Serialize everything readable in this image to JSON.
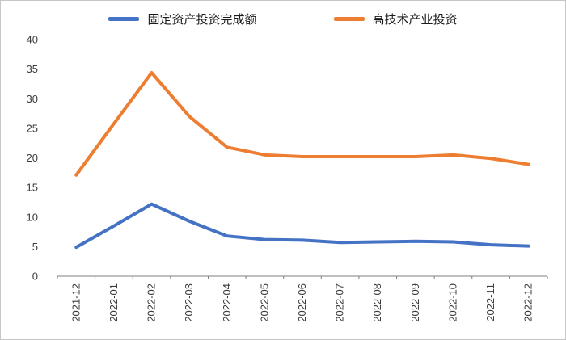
{
  "chart_data": {
    "type": "line",
    "categories": [
      "2021-12",
      "2022-01",
      "2022-02",
      "2022-03",
      "2022-04",
      "2022-05",
      "2022-06",
      "2022-07",
      "2022-08",
      "2022-09",
      "2022-10",
      "2022-11",
      "2022-12"
    ],
    "series": [
      {
        "name": "固定资产投资完成额",
        "color": "#4472C4",
        "values": [
          4.9,
          8.5,
          12.2,
          9.3,
          6.8,
          6.2,
          6.1,
          5.7,
          5.8,
          5.9,
          5.8,
          5.3,
          5.1
        ]
      },
      {
        "name": "高技术产业投资",
        "color": "#ED7D31",
        "values": [
          17.1,
          25.8,
          34.4,
          27.0,
          21.8,
          20.5,
          20.2,
          20.2,
          20.2,
          20.2,
          20.5,
          19.9,
          18.9
        ]
      }
    ],
    "title": "",
    "xlabel": "",
    "ylabel": "",
    "ylim": [
      0,
      40
    ],
    "ytick_step": 5,
    "grid": false,
    "legend_position": "top",
    "axis_color": "#7f7f7f",
    "label_color": "#3b3b3b"
  }
}
